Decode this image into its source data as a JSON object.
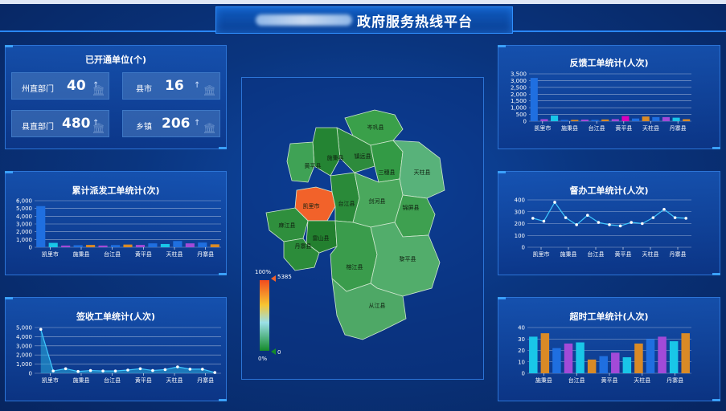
{
  "header": {
    "title": "政府服务热线平台"
  },
  "units_panel": {
    "title": "已开通单位(个)",
    "stats": [
      {
        "label": "州直部门",
        "value": "40",
        "arrow": "↑"
      },
      {
        "label": "县市",
        "value": "16",
        "arrow": "↑"
      },
      {
        "label": "县直部门",
        "value": "480",
        "arrow": "↑"
      },
      {
        "label": "乡镇",
        "value": "206",
        "arrow": "↑"
      }
    ]
  },
  "map": {
    "legend_max_label": "100%",
    "legend_max_value": "5385",
    "legend_min_label": "0%",
    "legend_min_value": "0",
    "regions": [
      "岑巩县",
      "镇远县",
      "施秉县",
      "黄平县",
      "三穗县",
      "天柱县",
      "凯里市",
      "台江县",
      "剑河县",
      "锦屏县",
      "麻江县",
      "雷山县",
      "丹寨县",
      "榕江县",
      "黎平县",
      "从江县"
    ]
  },
  "chart_data": [
    {
      "id": "dispatch",
      "type": "bar",
      "title": "累计派发工单统计(次)",
      "x_tick_labels": [
        "凯里市",
        "施秉县",
        "台江县",
        "黄平县",
        "天柱县",
        "丹寨县"
      ],
      "ylim": [
        0,
        6000
      ],
      "y_ticks": [
        "0",
        "1,000",
        "2,000",
        "3,000",
        "4,000",
        "5,000",
        "6,000"
      ],
      "values": [
        5300,
        560,
        220,
        260,
        300,
        220,
        280,
        350,
        300,
        500,
        420,
        800,
        500,
        600,
        380
      ],
      "colors": [
        "#1f6fe0",
        "#19c6e8",
        "#a24ad8",
        "#1f6fe0",
        "#d98a26",
        "#a24ad8",
        "#1f6fe0",
        "#d98a26",
        "#a24ad8",
        "#1f6fe0",
        "#19c6e8",
        "#1f6fe0",
        "#a24ad8",
        "#1f6fe0",
        "#d98a26"
      ]
    },
    {
      "id": "sign",
      "type": "area",
      "title": "签收工单统计(人次)",
      "x_tick_labels": [
        "凯里市",
        "施秉县",
        "台江县",
        "黄平县",
        "天柱县",
        "丹寨县"
      ],
      "ylim": [
        0,
        5000
      ],
      "y_ticks": [
        "0",
        "1,000",
        "2,000",
        "3,000",
        "4,000",
        "5,000"
      ],
      "values": [
        4800,
        250,
        500,
        200,
        300,
        250,
        250,
        350,
        500,
        300,
        400,
        700,
        450,
        450,
        80
      ]
    },
    {
      "id": "feedback",
      "type": "bar",
      "title": "反馈工单统计(人次)",
      "x_tick_labels": [
        "凯里市",
        "施秉县",
        "台江县",
        "黄平县",
        "天柱县",
        "丹寨县"
      ],
      "ylim": [
        0,
        3500
      ],
      "y_ticks": [
        "0",
        "500",
        "1,000",
        "1,500",
        "2,000",
        "2,500",
        "3,000",
        "3,500"
      ],
      "values": [
        3200,
        150,
        420,
        100,
        100,
        120,
        100,
        130,
        150,
        380,
        200,
        350,
        300,
        300,
        260,
        150
      ],
      "colors": [
        "#1f6fe0",
        "#a24ad8",
        "#19c6e8",
        "#1f6fe0",
        "#d98a26",
        "#a24ad8",
        "#1f6fe0",
        "#d98a26",
        "#a24ad8",
        "#d0b",
        "#1f6fe0",
        "#d98a26",
        "#1f6fe0",
        "#a24ad8",
        "#19c6e8",
        "#d98a26"
      ]
    },
    {
      "id": "supervise",
      "type": "line",
      "title": "督办工单统计(人次)",
      "x_tick_labels": [
        "凯里市",
        "施秉县",
        "台江县",
        "黄平县",
        "天柱县",
        "丹寨县"
      ],
      "ylim": [
        0,
        400
      ],
      "y_ticks": [
        "0",
        "100",
        "200",
        "300",
        "400"
      ],
      "values": [
        245,
        220,
        380,
        250,
        190,
        270,
        210,
        190,
        180,
        210,
        200,
        250,
        320,
        250,
        245
      ]
    },
    {
      "id": "timeout",
      "type": "bar",
      "title": "超时工单统计(人次)",
      "x_tick_labels": [
        "施秉县",
        "台江县",
        "黄平县",
        "天柱县",
        "丹寨县"
      ],
      "ylim": [
        0,
        40
      ],
      "y_ticks": [
        "0",
        "10",
        "20",
        "30",
        "40"
      ],
      "values": [
        32,
        35,
        22,
        26,
        27,
        12,
        15,
        18,
        14,
        26,
        30,
        32,
        28,
        35
      ],
      "colors": [
        "#19c6e8",
        "#d98a26",
        "#1f6fe0",
        "#a24ad8",
        "#19c6e8",
        "#d98a26",
        "#1f6fe0",
        "#a24ad8",
        "#19c6e8",
        "#d98a26",
        "#1f6fe0",
        "#a24ad8",
        "#19c6e8",
        "#d98a26"
      ]
    }
  ]
}
